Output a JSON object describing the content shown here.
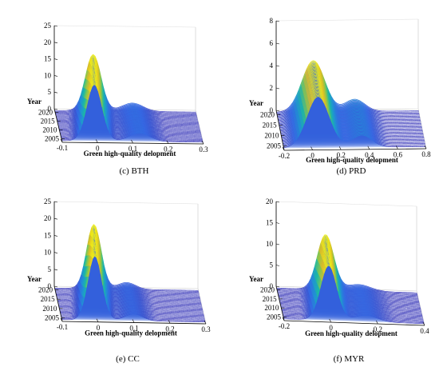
{
  "chart_data": [
    {
      "type": "area",
      "caption": "(c)  BTH",
      "xlabel": "Green high-quality delopment",
      "ylabel": "Year",
      "x_ticks": [
        "-0.1",
        "0",
        "0.1",
        "0.2",
        "0.3"
      ],
      "y_ticks": [
        "2005",
        "2010",
        "2015",
        "2020"
      ],
      "z_ticks": [
        "0",
        "5",
        "10",
        "15",
        "20",
        "25"
      ],
      "xlim": [
        -0.1,
        0.3
      ],
      "ylim": [
        2003,
        2022
      ],
      "zlim": [
        0,
        25
      ],
      "peak_x": 0.0,
      "peak_height": 17,
      "peak_width": 0.022,
      "bump_x": 0.12,
      "bump_height": 2.5,
      "bump_width": 0.03
    },
    {
      "type": "area",
      "caption": "(d)  PRD",
      "xlabel": "Green high-quality delopment",
      "ylabel": "Year",
      "x_ticks": [
        "-0.2",
        "0",
        "0.2",
        "0.4",
        "0.6",
        "0.8"
      ],
      "y_ticks": [
        "2005",
        "2010",
        "2015",
        "2020"
      ],
      "z_ticks": [
        "0",
        "2",
        "4",
        "6",
        "8"
      ],
      "xlim": [
        -0.2,
        0.8
      ],
      "ylim": [
        2003,
        2022
      ],
      "zlim": [
        0,
        8
      ],
      "peak_x": 0.05,
      "peak_height": 4.6,
      "peak_width": 0.08,
      "bump_x": 0.35,
      "bump_height": 1.1,
      "bump_width": 0.07
    },
    {
      "type": "area",
      "caption": "(e)  CC",
      "xlabel": "Green high-quality delopment",
      "ylabel": "Year",
      "x_ticks": [
        "-0.1",
        "0",
        "0.1",
        "0.2",
        "0.3"
      ],
      "y_ticks": [
        "2005",
        "2010",
        "2015",
        "2020"
      ],
      "z_ticks": [
        "0",
        "5",
        "10",
        "15",
        "20",
        "25"
      ],
      "xlim": [
        -0.1,
        0.3
      ],
      "ylim": [
        2003,
        2022
      ],
      "zlim": [
        0,
        25
      ],
      "peak_x": 0.0,
      "peak_height": 19,
      "peak_width": 0.02,
      "bump_x": 0.1,
      "bump_height": 2.0,
      "bump_width": 0.025
    },
    {
      "type": "area",
      "caption": "(f)  MYR",
      "xlabel": "Green high-quality delopment",
      "ylabel": "Year",
      "x_ticks": [
        "-0.2",
        "0",
        "0.2",
        "0.4"
      ],
      "y_ticks": [
        "2005",
        "2010",
        "2015",
        "2020"
      ],
      "z_ticks": [
        "0",
        "5",
        "10",
        "15",
        "20"
      ],
      "xlim": [
        -0.2,
        0.4
      ],
      "ylim": [
        2003,
        2022
      ],
      "zlim": [
        0,
        20
      ],
      "peak_x": 0.0,
      "peak_height": 13,
      "peak_width": 0.035,
      "bump_x": 0.15,
      "bump_height": 1.5,
      "bump_width": 0.05
    }
  ]
}
